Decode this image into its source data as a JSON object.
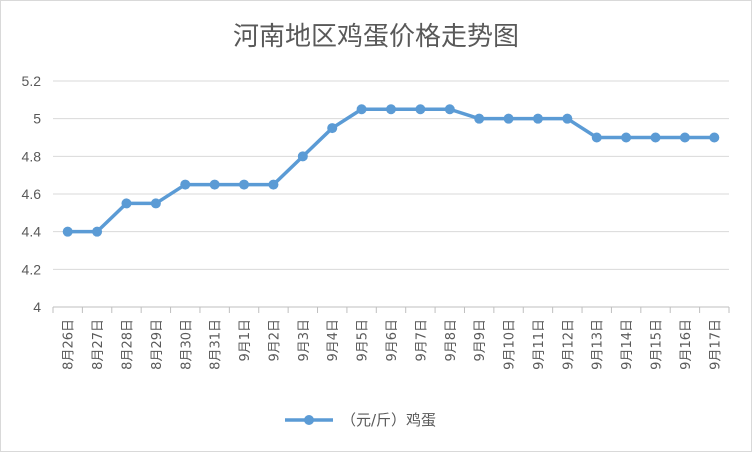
{
  "chart_data": {
    "type": "line",
    "title": "河南地区鸡蛋价格走势图",
    "xlabel": "",
    "ylabel": "",
    "ylim": [
      4,
      5.2
    ],
    "yticks": [
      "4",
      "4.2",
      "4.4",
      "4.6",
      "4.8",
      "5",
      "5.2"
    ],
    "grid": true,
    "legend": "bottom",
    "categories": [
      "8月26日",
      "8月27日",
      "8月28日",
      "8月29日",
      "8月30日",
      "8月31日",
      "9月1日",
      "9月2日",
      "9月3日",
      "9月4日",
      "9月5日",
      "9月6日",
      "9月7日",
      "9月8日",
      "9月9日",
      "9月10日",
      "9月11日",
      "9月12日",
      "9月13日",
      "9月14日",
      "9月15日",
      "9月16日",
      "9月17日"
    ],
    "series": [
      {
        "name": "（元/斤）鸡蛋",
        "color": "#5b9bd5",
        "values": [
          4.4,
          4.4,
          4.55,
          4.55,
          4.65,
          4.65,
          4.65,
          4.65,
          4.8,
          4.95,
          5.05,
          5.05,
          5.05,
          5.05,
          5.0,
          5.0,
          5.0,
          5.0,
          4.9,
          4.9,
          4.9,
          4.9,
          4.9
        ]
      }
    ]
  }
}
